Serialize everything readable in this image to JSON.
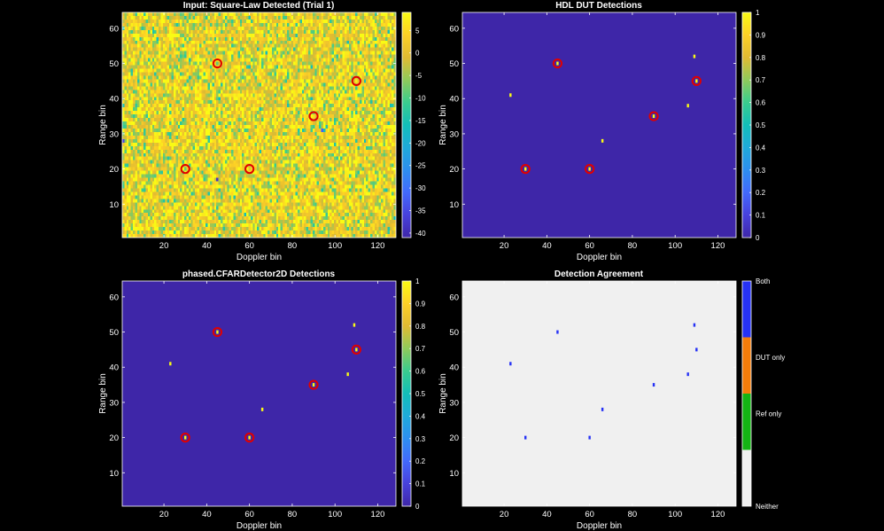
{
  "chart_data": [
    {
      "id": "input",
      "type": "heatmap",
      "title": "Input: Square-Law Detected (Trial 1)",
      "xlabel": "Doppler bin",
      "ylabel": "Range bin",
      "xlim": [
        0.5,
        128.5
      ],
      "ylim": [
        0.5,
        64.5
      ],
      "grid": {
        "cols": 128,
        "rows": 64
      },
      "xticks": [
        20,
        40,
        60,
        80,
        100,
        120
      ],
      "yticks": [
        10,
        20,
        30,
        40,
        50,
        60
      ],
      "colormap": "parula",
      "clim": [
        -41,
        9
      ],
      "colorbar_ticks": [
        5,
        0,
        -5,
        -10,
        -15,
        -20,
        -25,
        -30,
        -35,
        -40
      ],
      "noise": {
        "mean_db": 1.5,
        "spread_db": 6.5,
        "seed": 7
      },
      "low_outliers": [
        {
          "x": 45,
          "y": 17,
          "v": -38
        },
        {
          "x": 94,
          "y": 31,
          "v": -32
        },
        {
          "x": 1,
          "y": 28,
          "v": -36
        }
      ],
      "targets": [
        [
          30,
          20
        ],
        [
          45,
          50
        ],
        [
          60,
          20
        ],
        [
          90,
          35
        ],
        [
          110,
          45
        ]
      ],
      "target_marker": "circle-red"
    },
    {
      "id": "dut",
      "type": "heatmap",
      "title": "HDL DUT Detections",
      "xlabel": "Doppler bin",
      "ylabel": "Range bin",
      "xlim": [
        0.5,
        128.5
      ],
      "ylim": [
        0.5,
        64.5
      ],
      "grid": {
        "cols": 128,
        "rows": 64
      },
      "xticks": [
        20,
        40,
        60,
        80,
        100,
        120
      ],
      "yticks": [
        10,
        20,
        30,
        40,
        50,
        60
      ],
      "colormap": "parula",
      "clim": [
        0,
        1
      ],
      "colorbar_ticks": [
        1,
        0.9,
        0.8,
        0.7,
        0.6,
        0.5,
        0.4,
        0.3,
        0.2,
        0.1,
        0
      ],
      "background_value": 0,
      "detections": [
        [
          30,
          20
        ],
        [
          45,
          50
        ],
        [
          60,
          20
        ],
        [
          90,
          35
        ],
        [
          110,
          45
        ],
        [
          23,
          41
        ],
        [
          66,
          28
        ],
        [
          106,
          38
        ],
        [
          109,
          52
        ]
      ],
      "targets": [
        [
          30,
          20
        ],
        [
          45,
          50
        ],
        [
          60,
          20
        ],
        [
          90,
          35
        ],
        [
          110,
          45
        ]
      ],
      "target_marker": "circle-red"
    },
    {
      "id": "ref",
      "type": "heatmap",
      "title": "phased.CFARDetector2D Detections",
      "xlabel": "Doppler bin",
      "ylabel": "Range bin",
      "xlim": [
        0.5,
        128.5
      ],
      "ylim": [
        0.5,
        64.5
      ],
      "grid": {
        "cols": 128,
        "rows": 64
      },
      "xticks": [
        20,
        40,
        60,
        80,
        100,
        120
      ],
      "yticks": [
        10,
        20,
        30,
        40,
        50,
        60
      ],
      "colormap": "parula",
      "clim": [
        0,
        1
      ],
      "colorbar_ticks": [
        1,
        0.9,
        0.8,
        0.7,
        0.6,
        0.5,
        0.4,
        0.3,
        0.2,
        0.1,
        0
      ],
      "background_value": 0,
      "detections": [
        [
          30,
          20
        ],
        [
          45,
          50
        ],
        [
          60,
          20
        ],
        [
          90,
          35
        ],
        [
          110,
          45
        ],
        [
          23,
          41
        ],
        [
          66,
          28
        ],
        [
          106,
          38
        ],
        [
          109,
          52
        ]
      ],
      "targets": [
        [
          30,
          20
        ],
        [
          45,
          50
        ],
        [
          60,
          20
        ],
        [
          90,
          35
        ],
        [
          110,
          45
        ]
      ],
      "target_marker": "circle-red"
    },
    {
      "id": "agree",
      "type": "heatmap",
      "title": "Detection Agreement",
      "xlabel": "Doppler bin",
      "ylabel": "Range bin",
      "xlim": [
        0.5,
        128.5
      ],
      "ylim": [
        0.5,
        64.5
      ],
      "grid": {
        "cols": 128,
        "rows": 64
      },
      "xticks": [
        20,
        40,
        60,
        80,
        100,
        120
      ],
      "yticks": [
        10,
        20,
        30,
        40,
        50,
        60
      ],
      "colormap": "categorical",
      "categories": [
        {
          "label": "Both",
          "color": "#2632f5"
        },
        {
          "label": "DUT only",
          "color": "#f57d0a"
        },
        {
          "label": "Ref only",
          "color": "#14b414"
        },
        {
          "label": "Neither",
          "color": "#f0f0f0"
        }
      ],
      "background_category": "Neither",
      "detections": [
        [
          30,
          20
        ],
        [
          45,
          50
        ],
        [
          60,
          20
        ],
        [
          90,
          35
        ],
        [
          110,
          45
        ],
        [
          23,
          41
        ],
        [
          66,
          28
        ],
        [
          106,
          38
        ],
        [
          109,
          52
        ]
      ],
      "detection_category": "Both"
    }
  ]
}
